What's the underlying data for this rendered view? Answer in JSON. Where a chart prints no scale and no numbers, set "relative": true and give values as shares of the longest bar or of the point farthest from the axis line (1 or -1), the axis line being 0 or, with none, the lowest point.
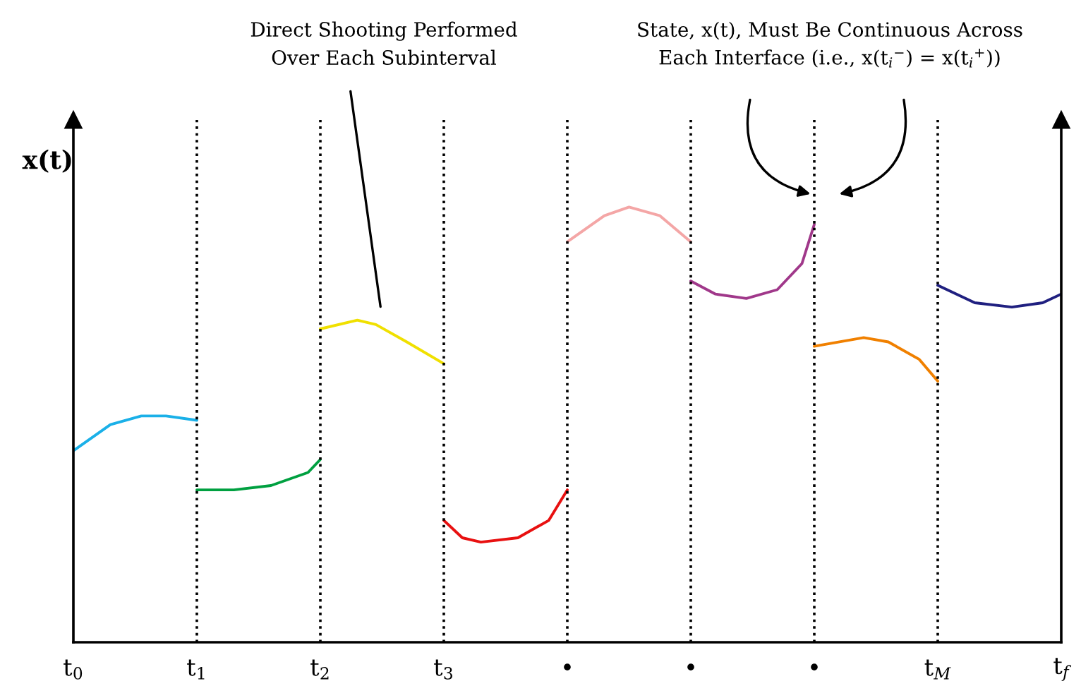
{
  "chart_data": {
    "type": "line",
    "relative": true,
    "ylabel": "x(t)",
    "xlim": [
      0,
      8
    ],
    "xticks": [
      {
        "value": 0,
        "label": "t$_{0}$"
      },
      {
        "value": 1,
        "label": "t$_{1}$"
      },
      {
        "value": 2,
        "label": "t$_{2}$"
      },
      {
        "value": 3,
        "label": "t$_{3}$"
      },
      {
        "value": 4,
        "label": "•"
      },
      {
        "value": 5,
        "label": "•"
      },
      {
        "value": 6,
        "label": "•"
      },
      {
        "value": 7,
        "label": "t$_{M}$"
      },
      {
        "value": 8,
        "label": "t$_{f}$"
      }
    ],
    "series": [
      {
        "color": "#1ab0e8",
        "x": [
          0,
          0.3,
          0.55,
          0.75,
          1
        ],
        "values": [
          0.44,
          0.5,
          0.52,
          0.52,
          0.51
        ]
      },
      {
        "color": "#00a040",
        "x": [
          1,
          1.3,
          1.6,
          1.9,
          2
        ],
        "values": [
          0.35,
          0.35,
          0.36,
          0.39,
          0.42
        ]
      },
      {
        "color": "#f0e000",
        "x": [
          2,
          2.3,
          2.45,
          2.7,
          3
        ],
        "values": [
          0.72,
          0.74,
          0.73,
          0.69,
          0.64
        ]
      },
      {
        "color": "#e81010",
        "x": [
          3,
          3.15,
          3.3,
          3.6,
          3.85,
          4
        ],
        "values": [
          0.28,
          0.24,
          0.23,
          0.24,
          0.28,
          0.35
        ]
      },
      {
        "color": "#f4a6a6",
        "x": [
          4,
          4.3,
          4.5,
          4.75,
          5
        ],
        "values": [
          0.92,
          0.98,
          1.0,
          0.98,
          0.92
        ]
      },
      {
        "color": "#a0388a",
        "x": [
          5,
          5.2,
          5.45,
          5.7,
          5.9,
          6
        ],
        "values": [
          0.83,
          0.8,
          0.79,
          0.81,
          0.87,
          0.96
        ]
      },
      {
        "color": "#f08000",
        "x": [
          6,
          6.4,
          6.6,
          6.85,
          7
        ],
        "values": [
          0.68,
          0.7,
          0.69,
          0.65,
          0.6
        ]
      },
      {
        "color": "#202080",
        "x": [
          7,
          7.3,
          7.6,
          7.85,
          8
        ],
        "values": [
          0.82,
          0.78,
          0.77,
          0.78,
          0.8
        ]
      }
    ],
    "ref_lines": [
      {
        "axis": "x",
        "value": 1,
        "color": "#000000",
        "line_style": "dotted"
      },
      {
        "axis": "x",
        "value": 2,
        "color": "#000000",
        "line_style": "dotted"
      },
      {
        "axis": "x",
        "value": 3,
        "color": "#000000",
        "line_style": "dotted"
      },
      {
        "axis": "x",
        "value": 4,
        "color": "#000000",
        "line_style": "dotted"
      },
      {
        "axis": "x",
        "value": 5,
        "color": "#000000",
        "line_style": "dotted"
      },
      {
        "axis": "x",
        "value": 6,
        "color": "#000000",
        "line_style": "dotted"
      },
      {
        "axis": "x",
        "value": 7,
        "color": "#000000",
        "line_style": "dotted"
      }
    ],
    "annotations": [
      "Direct Shooting Performed\nOver Each Subinterval",
      "State, x(t), Must Be Continuous Across\nEach Interface (i.e., x(t$_{i}$$^{−}$) = x(t$_{i}$$^{+}$))"
    ],
    "grid": false,
    "legend": false,
    "marker": "none",
    "line_style": "solid"
  }
}
